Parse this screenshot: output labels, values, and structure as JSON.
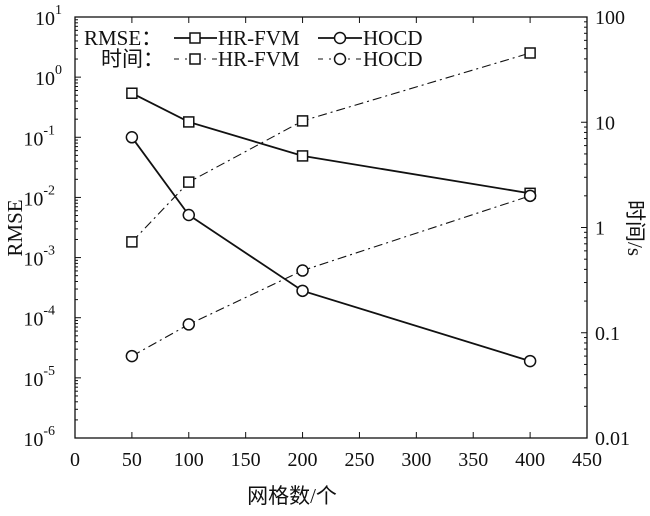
{
  "chart_data": {
    "type": "line",
    "xlabel": "网格数/个",
    "ylabel_left": "RMSE",
    "ylabel_right": "时间/s",
    "xlim": [
      0,
      450
    ],
    "xticks": [
      0,
      50,
      100,
      150,
      200,
      250,
      300,
      350,
      400,
      450
    ],
    "ylim_left": [
      1e-06,
      10
    ],
    "yscale_left": "log",
    "yticks_left": [
      "10^-6",
      "10^-5",
      "10^-4",
      "10^-3",
      "10^-2",
      "10^-1",
      "10^0",
      "10^1"
    ],
    "ylim_right": [
      0.01,
      100
    ],
    "yscale_right": "log",
    "yticks_right": [
      "0.01",
      "0.1",
      "1",
      "10",
      "100"
    ],
    "grid": false,
    "legend_placement": "top-left",
    "legend": {
      "row1_label": "RMSE：",
      "row2_label": "时间：",
      "series_a": "HR-FVM",
      "series_b": "HOCD"
    },
    "x": [
      50,
      100,
      200,
      400
    ],
    "series": [
      {
        "name": "HR-FVM",
        "group": "RMSE",
        "axis": "left",
        "marker": "square",
        "line": "solid",
        "values": [
          0.54,
          0.18,
          0.049,
          0.0117
        ]
      },
      {
        "name": "HOCD",
        "group": "RMSE",
        "axis": "left",
        "marker": "circle",
        "line": "solid",
        "values": [
          0.1,
          0.0051,
          0.00028,
          1.9e-05
        ]
      },
      {
        "name": "HR-FVM",
        "group": "时间",
        "axis": "right",
        "marker": "square",
        "line": "dashdot",
        "values": [
          0.73,
          2.7,
          10.3,
          45.5
        ]
      },
      {
        "name": "HOCD",
        "group": "时间",
        "axis": "right",
        "marker": "circle",
        "line": "dashdot",
        "values": [
          0.06,
          0.12,
          0.39,
          2.0
        ]
      }
    ]
  }
}
